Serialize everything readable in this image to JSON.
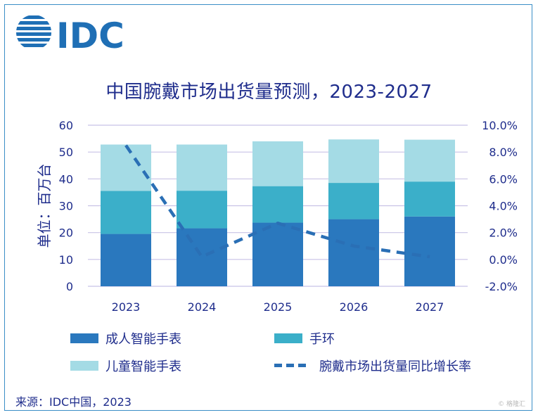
{
  "logo_text": "IDC",
  "title": "中国腕戴市场出货量预测，2023-2027",
  "source": "来源：IDC中国，2023",
  "watermark": "© 格隆汇",
  "colors": {
    "adult_smartwatch": "#2a78be",
    "band": "#3bafc9",
    "kids_smartwatch": "#a4dbe5",
    "growth_line": "#2a6fb5",
    "text": "#1f2d8c",
    "grid": "#c8c2e6"
  },
  "chart_data": {
    "type": "bar",
    "stacked": true,
    "categories": [
      "2023",
      "2024",
      "2025",
      "2026",
      "2027"
    ],
    "ylabel": "单位：百万台",
    "ylim": [
      0,
      60
    ],
    "y_ticks": [
      "0",
      "10",
      "20",
      "30",
      "40",
      "50",
      "60"
    ],
    "y2lim": [
      -2.0,
      10.0
    ],
    "y2_ticks": [
      "-2.0%",
      "0.0%",
      "2.0%",
      "4.0%",
      "6.0%",
      "8.0%",
      "10.0%"
    ],
    "grid": true,
    "legend_position": "bottom",
    "series": [
      {
        "name": "成人智能手表",
        "type": "bar",
        "values": [
          19.5,
          21.6,
          23.7,
          25.0,
          26.0
        ]
      },
      {
        "name": "手环",
        "type": "bar",
        "values": [
          16.0,
          14.0,
          13.6,
          13.5,
          13.0
        ]
      },
      {
        "name": "儿童智能手表",
        "type": "bar",
        "values": [
          17.3,
          17.2,
          16.7,
          16.2,
          15.6
        ]
      },
      {
        "name": "腕戴市场出货量同比增长率",
        "type": "line",
        "axis": "right",
        "values": [
          8.5,
          0.2,
          2.7,
          1.0,
          0.2
        ]
      }
    ]
  }
}
